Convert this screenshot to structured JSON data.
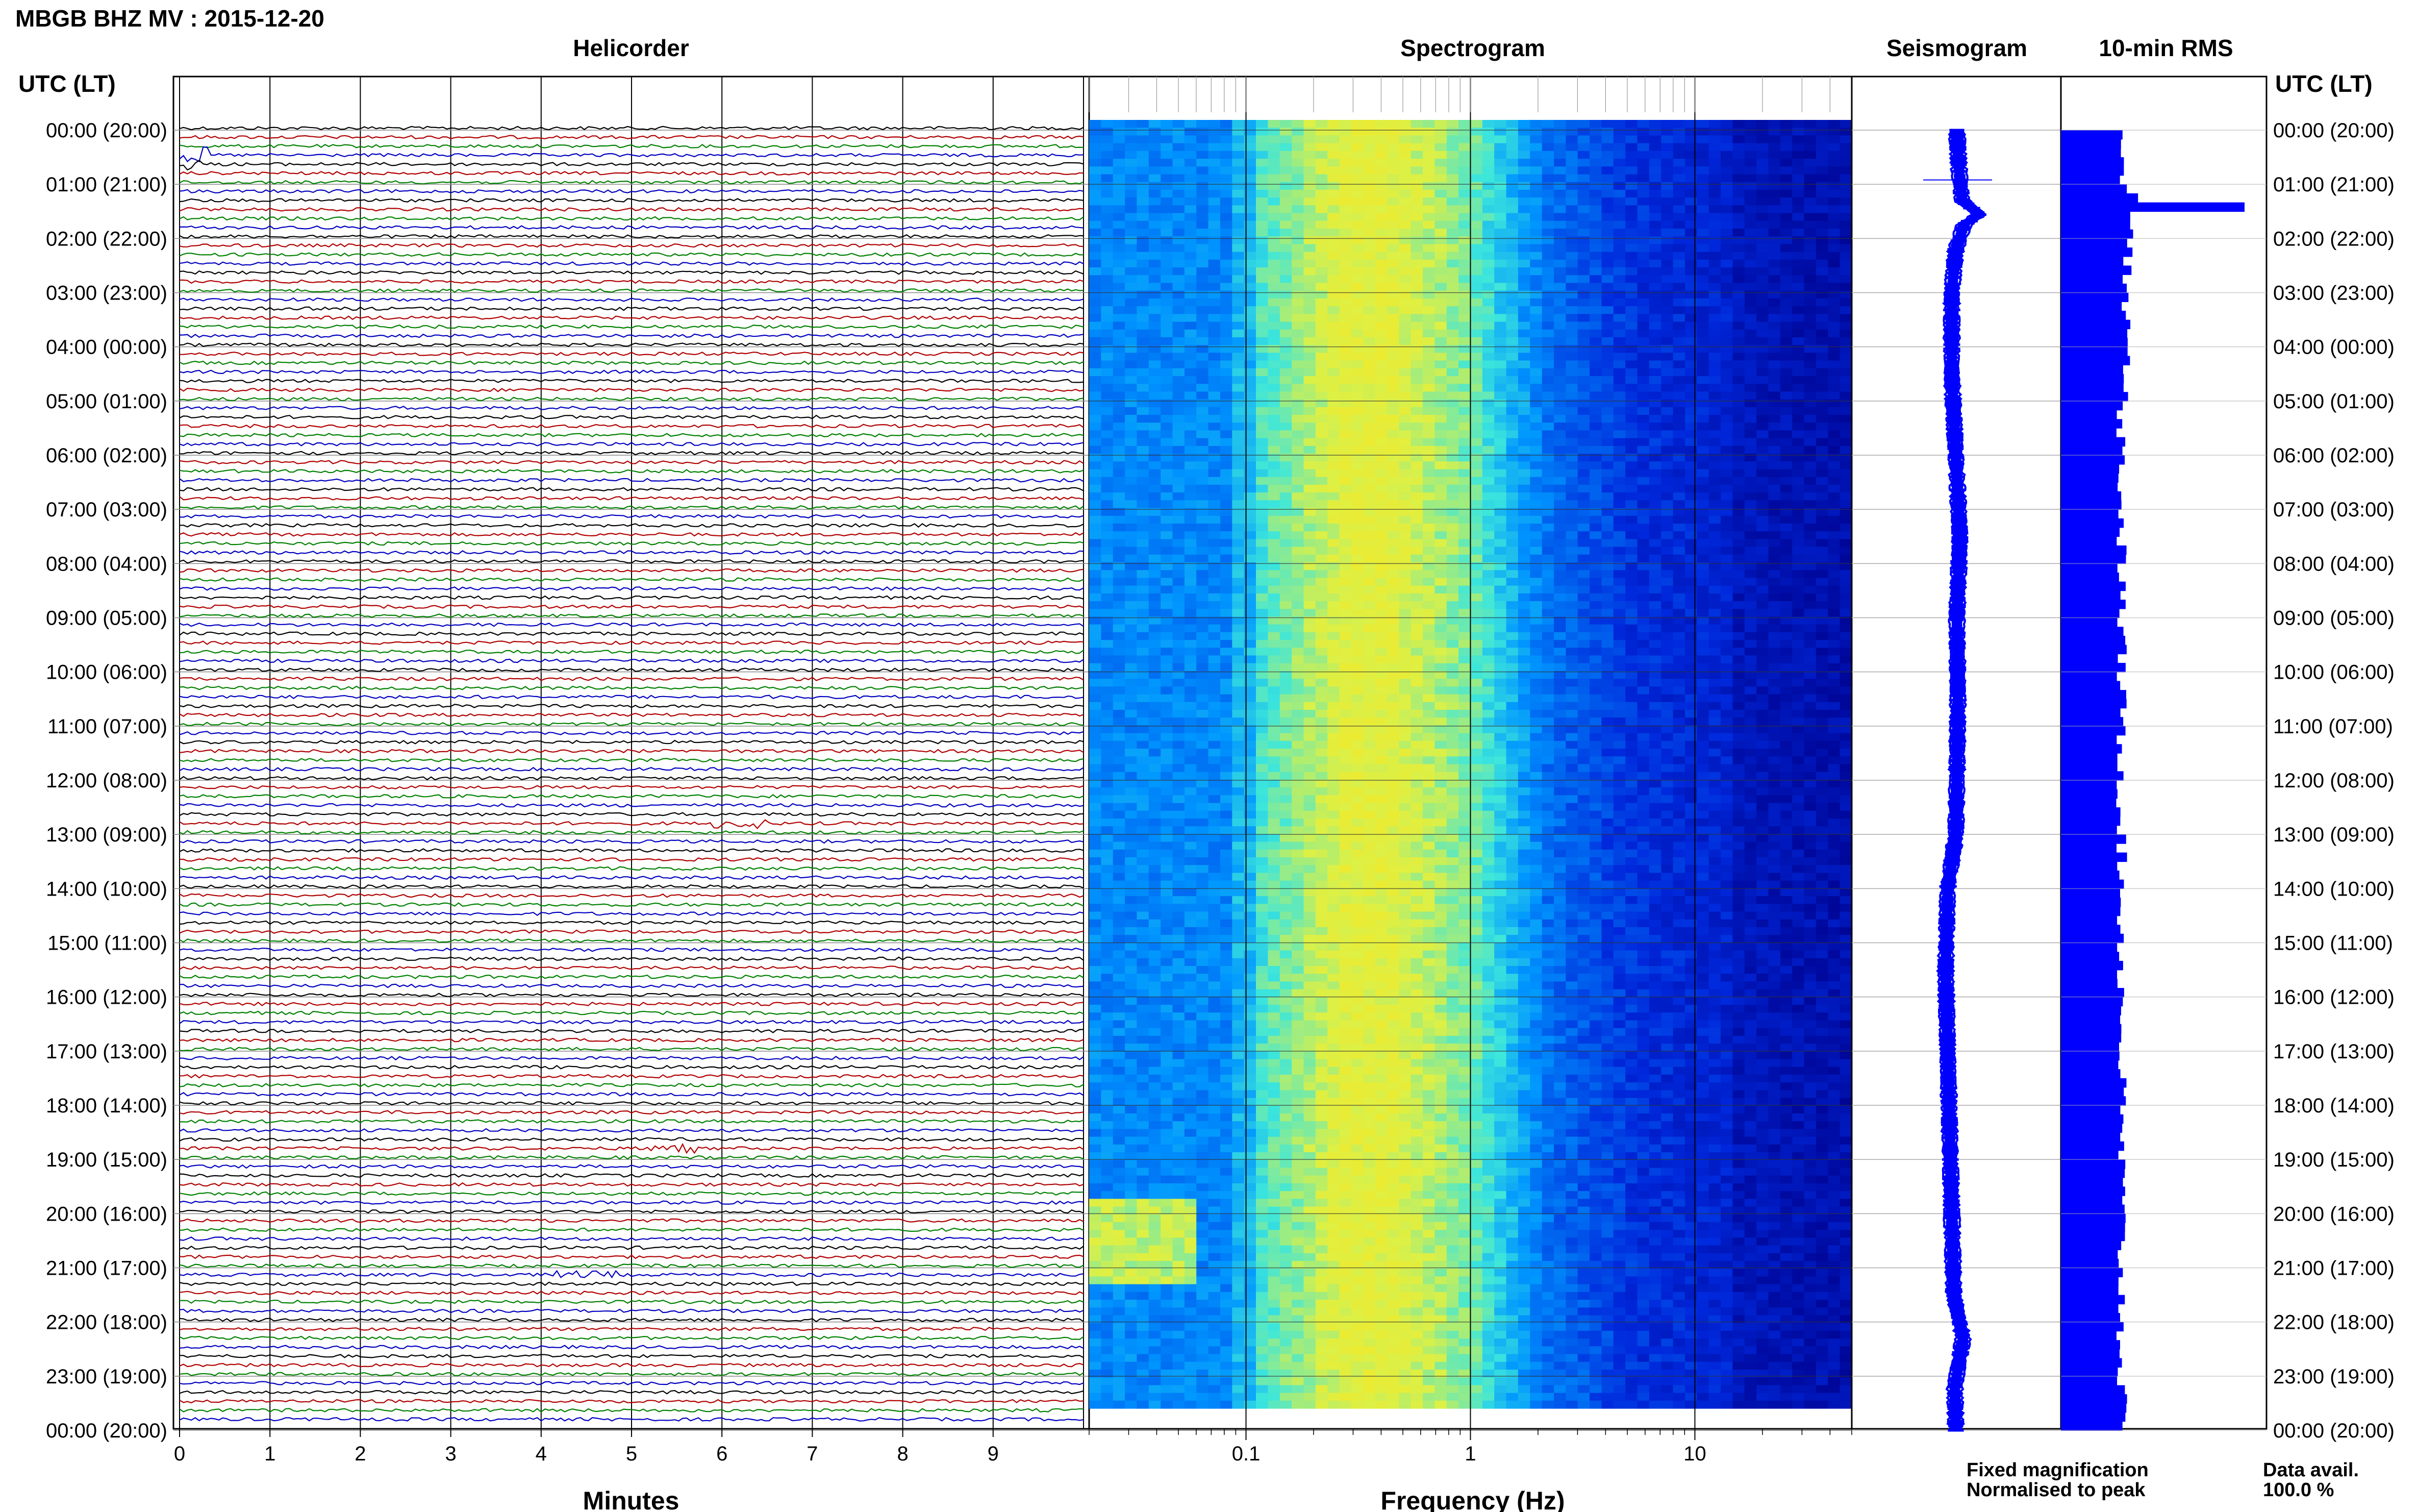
{
  "title": "MBGB BHZ MV : 2015-12-20",
  "panels": {
    "helicorder": "Helicorder",
    "spectrogram": "Spectrogram",
    "seismogram": "Seismogram",
    "rms": "10-min RMS"
  },
  "time_header": "UTC (LT)",
  "row_labels": [
    "00:00 (20:00)",
    "01:00 (21:00)",
    "02:00 (22:00)",
    "03:00 (23:00)",
    "04:00 (00:00)",
    "05:00 (01:00)",
    "06:00 (02:00)",
    "07:00 (03:00)",
    "08:00 (04:00)",
    "09:00 (05:00)",
    "10:00 (06:00)",
    "11:00 (07:00)",
    "12:00 (08:00)",
    "13:00 (09:00)",
    "14:00 (10:00)",
    "15:00 (11:00)",
    "16:00 (12:00)",
    "17:00 (13:00)",
    "18:00 (14:00)",
    "19:00 (15:00)",
    "20:00 (16:00)",
    "21:00 (17:00)",
    "22:00 (18:00)",
    "23:00 (19:00)",
    "00:00 (20:00)"
  ],
  "legend": {
    "fixed": "Fixed magnification",
    "normalised": "Normalised to peak",
    "fixed_color": "#0000ff",
    "normalised_color": "#ff0000"
  },
  "data_avail": {
    "label": "Data avail.",
    "value": "100.0 %"
  },
  "colors": {
    "trace_cycle": [
      "#000000",
      "#b00000",
      "#008000",
      "#0000c0"
    ],
    "bar": "#0000ff"
  },
  "chart_data": [
    {
      "type": "line",
      "name": "helicorder",
      "xlabel": "Minutes",
      "x_ticks": [
        0,
        1,
        2,
        3,
        4,
        5,
        6,
        7,
        8,
        9
      ],
      "xlim": [
        0,
        10
      ],
      "traces_per_hour": 6
    },
    {
      "type": "heatmap",
      "name": "spectrogram",
      "xlabel": "Frequency (Hz)",
      "x_scale": "log",
      "x_ticks": [
        {
          "value": 0.1,
          "label": "0.1"
        },
        {
          "value": 1,
          "label": "1"
        },
        {
          "value": 10,
          "label": "10"
        }
      ],
      "xlim": [
        0.02,
        50
      ]
    },
    {
      "type": "line",
      "name": "seismogram"
    },
    {
      "type": "bar",
      "name": "10-min RMS",
      "peak_time_utc": "01:20",
      "peak_relative": 1.0,
      "typical_relative": 0.33
    }
  ]
}
